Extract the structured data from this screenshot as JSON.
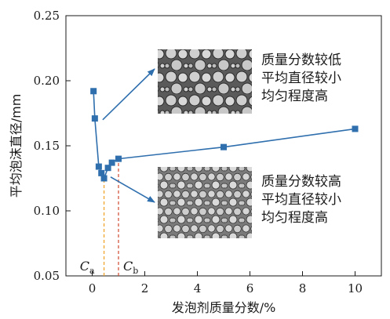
{
  "chart_data": {
    "type": "line",
    "title": "",
    "xlabel": "发泡剂质量分数/%",
    "ylabel": "平均泡沫直径/mm",
    "xlim": [
      -1,
      11
    ],
    "ylim": [
      0.05,
      0.25
    ],
    "xticks": [
      0,
      2,
      4,
      6,
      8,
      10
    ],
    "yticks": [
      0.05,
      0.1,
      0.15,
      0.2,
      0.25
    ],
    "xtick_labels": [
      "0",
      "2",
      "4",
      "6",
      "8",
      "10"
    ],
    "ytick_labels": [
      "0.05",
      "0.10",
      "0.15",
      "0.20",
      "0.25"
    ],
    "grid": false,
    "series": [
      {
        "color": "#2f6fae",
        "marker": "square",
        "x": [
          0.05,
          0.1,
          0.25,
          0.35,
          0.45,
          0.6,
          0.75,
          1.0,
          5.0,
          10.0
        ],
        "y": [
          0.192,
          0.171,
          0.134,
          0.129,
          0.125,
          0.133,
          0.137,
          0.14,
          0.149,
          0.163
        ]
      }
    ],
    "reference_lines": [
      {
        "label": "C",
        "subscript": "a",
        "x": 0.45,
        "color": "#f0a020"
      },
      {
        "label": "C",
        "subscript": "b",
        "x": 1.0,
        "color": "#d04a30"
      }
    ],
    "annotations": [
      {
        "lines": [
          "质量分数较低",
          "平均直径较小",
          "均匀程度高"
        ],
        "points_to": {
          "x": 0.4,
          "y": 0.17
        }
      },
      {
        "lines": [
          "质量分数较高",
          "平均直径较小",
          "均匀程度高"
        ],
        "points_to": {
          "x": 0.7,
          "y": 0.126
        }
      }
    ],
    "colors": {
      "axis": "#1a1a1a",
      "series": "#2f6fae",
      "arrow": "#2f6fae"
    }
  }
}
